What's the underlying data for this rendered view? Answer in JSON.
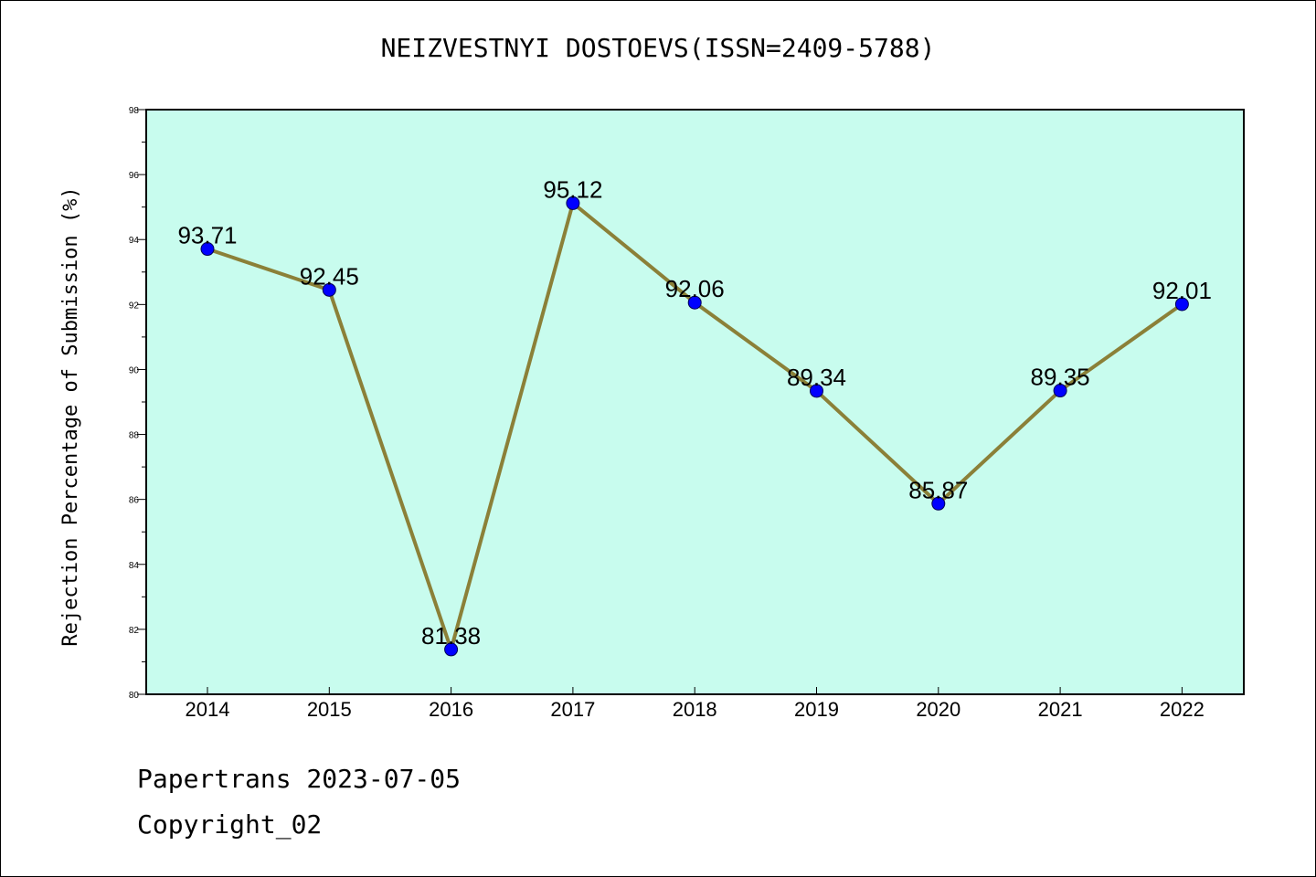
{
  "title": "NEIZVESTNYI DOSTOEVS(ISSN=2409-5788)",
  "footer": {
    "line1": "Papertrans 2023-07-05",
    "line2": "Copyright_02"
  },
  "colors": {
    "plot_background": "#c8fcee",
    "line": "#8b8038",
    "marker": "#0000ff"
  },
  "chart_data": {
    "type": "line",
    "title": "NEIZVESTNYI DOSTOEVS(ISSN=2409-5788)",
    "xlabel": "",
    "ylabel": "Rejection Percentage of Submission (%)",
    "categories": [
      "2014",
      "2015",
      "2016",
      "2017",
      "2018",
      "2019",
      "2020",
      "2021",
      "2022"
    ],
    "values": [
      93.71,
      92.45,
      81.38,
      95.12,
      92.06,
      89.34,
      85.87,
      89.35,
      92.01
    ],
    "data_labels": [
      "93.71",
      "92.45",
      "81.38",
      "95.12",
      "92.06",
      "89.34",
      "85.87",
      "89.35",
      "92.01"
    ],
    "ylim": [
      80,
      98
    ],
    "yticks": [
      80,
      82,
      84,
      86,
      88,
      90,
      92,
      94,
      96,
      98
    ],
    "grid": false,
    "legend": "none"
  }
}
